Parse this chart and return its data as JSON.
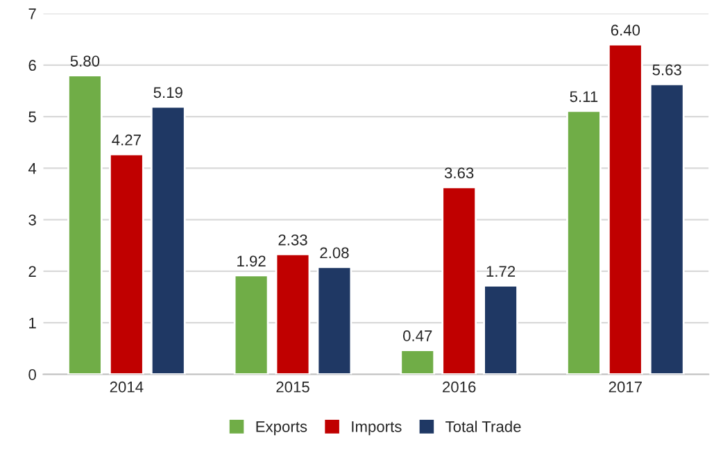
{
  "chart_data": {
    "type": "bar",
    "categories": [
      "2014",
      "2015",
      "2016",
      "2017"
    ],
    "series": [
      {
        "name": "Exports",
        "color": "#70ad47",
        "values": [
          5.8,
          1.92,
          0.47,
          5.11
        ],
        "value_labels": [
          "5.80",
          "1.92",
          "0.47",
          "5.11"
        ]
      },
      {
        "name": "Imports",
        "color": "#c00000",
        "values": [
          4.27,
          2.33,
          3.63,
          6.4
        ],
        "value_labels": [
          "4.27",
          "2.33",
          "3.63",
          "6.40"
        ]
      },
      {
        "name": "Total Trade",
        "color": "#1f3864",
        "values": [
          5.19,
          2.08,
          1.72,
          5.63
        ],
        "value_labels": [
          "5.19",
          "2.08",
          "1.72",
          "5.63"
        ]
      }
    ],
    "ylim": [
      0,
      7
    ],
    "yticks": [
      0,
      1,
      2,
      3,
      4,
      5,
      6,
      7
    ],
    "grid": "y",
    "legend": "bottom"
  }
}
